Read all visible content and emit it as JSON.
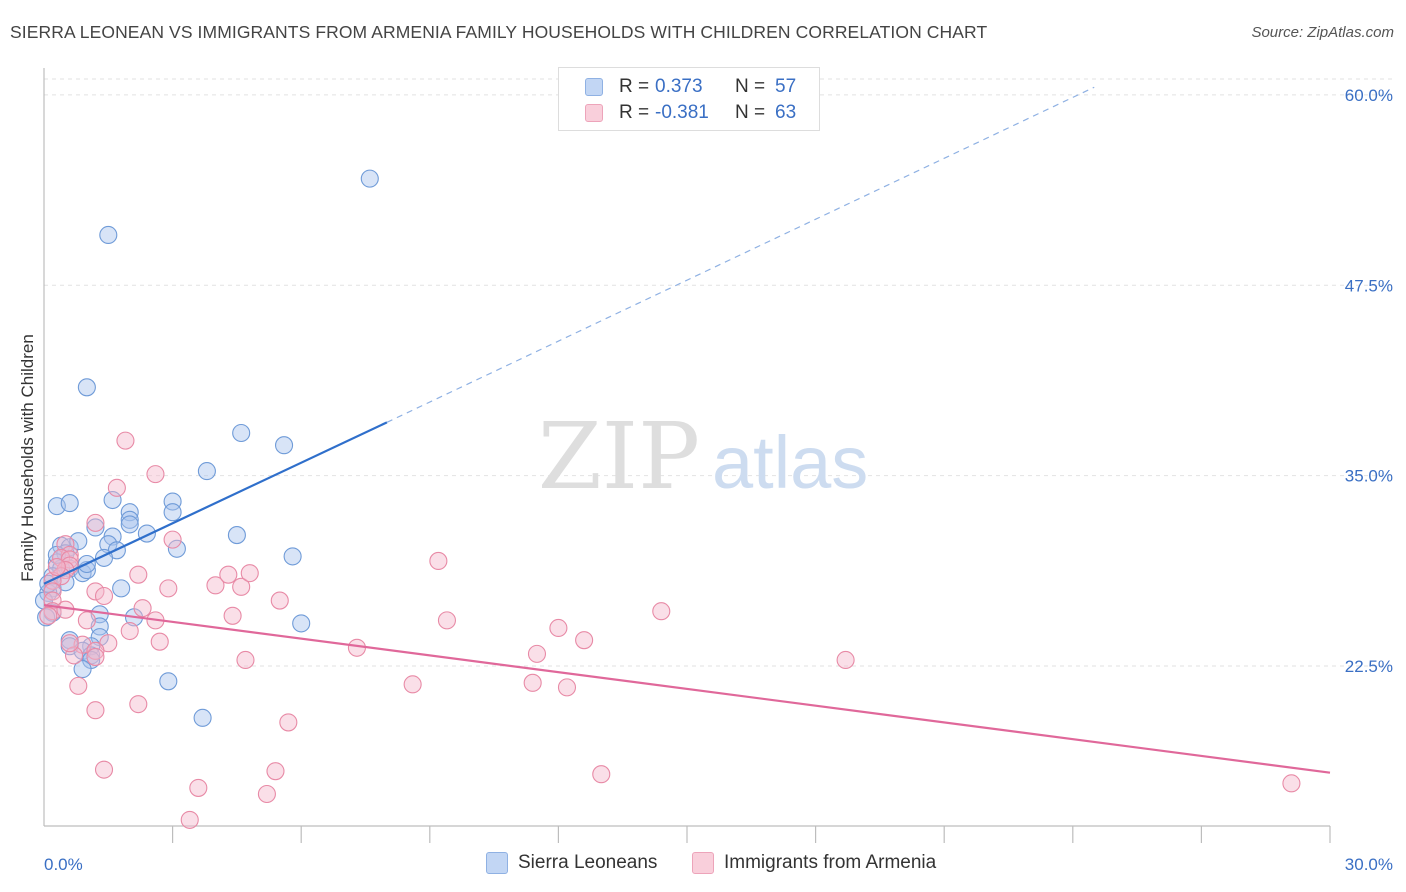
{
  "title": "SIERRA LEONEAN VS IMMIGRANTS FROM ARMENIA FAMILY HOUSEHOLDS WITH CHILDREN CORRELATION CHART",
  "source": "Source: ZipAtlas.com",
  "watermark": {
    "part1": "ZIP",
    "part2": "atlas"
  },
  "legend_top": {
    "rows": [
      {
        "r_label": "R =",
        "r_value": "0.373",
        "n_label": "N =",
        "n_value": "57",
        "color": "#a8c4ee"
      },
      {
        "r_label": "R =",
        "r_value": "-0.381",
        "n_label": "N =",
        "n_value": "63",
        "color": "#f5b8cb"
      }
    ]
  },
  "chart_data": {
    "type": "scatter",
    "ylabel": "Family Households with Children",
    "xlim": [
      0,
      30
    ],
    "ylim": [
      12.0,
      61.5
    ],
    "x_tick_labels": [
      "0.0%",
      "30.0%"
    ],
    "y_ticks": [
      22.5,
      35.0,
      47.5,
      60.0
    ],
    "y_tick_labels": [
      "22.5%",
      "35.0%",
      "47.5%",
      "60.0%"
    ],
    "grid": true,
    "legend": "bottom",
    "series": [
      {
        "name": "Sierra Leoneans",
        "color": "#a8c4ee",
        "stroke": "#6f9bd8",
        "line_color": "#2f6fcb",
        "trend": {
          "x0": 0.0,
          "y0": 27.9,
          "x1": 8.0,
          "y1": 38.5,
          "dash_to_x": 24.5,
          "dash_to_y": 60.5
        },
        "points": [
          [
            7.6,
            54.5
          ],
          [
            1.5,
            50.8
          ],
          [
            1.0,
            40.8
          ],
          [
            4.6,
            37.8
          ],
          [
            5.6,
            37.0
          ],
          [
            3.8,
            35.3
          ],
          [
            0.3,
            33.0
          ],
          [
            0.6,
            33.2
          ],
          [
            1.6,
            33.4
          ],
          [
            3.0,
            33.3
          ],
          [
            3.0,
            32.6
          ],
          [
            2.0,
            32.6
          ],
          [
            2.0,
            32.1
          ],
          [
            1.2,
            31.6
          ],
          [
            1.6,
            31.0
          ],
          [
            2.4,
            31.2
          ],
          [
            4.5,
            31.1
          ],
          [
            0.4,
            30.4
          ],
          [
            0.6,
            30.3
          ],
          [
            1.5,
            30.5
          ],
          [
            1.7,
            30.1
          ],
          [
            3.1,
            30.2
          ],
          [
            0.5,
            29.9
          ],
          [
            1.4,
            29.6
          ],
          [
            5.8,
            29.7
          ],
          [
            0.3,
            29.3
          ],
          [
            0.4,
            28.9
          ],
          [
            0.6,
            28.9
          ],
          [
            0.9,
            28.6
          ],
          [
            1.0,
            28.8
          ],
          [
            0.2,
            28.4
          ],
          [
            0.2,
            27.6
          ],
          [
            0.1,
            27.3
          ],
          [
            0.0,
            26.8
          ],
          [
            1.8,
            27.6
          ],
          [
            0.2,
            26.0
          ],
          [
            0.05,
            25.7
          ],
          [
            1.3,
            25.9
          ],
          [
            2.1,
            25.7
          ],
          [
            6.0,
            25.3
          ],
          [
            1.3,
            25.1
          ],
          [
            1.3,
            24.4
          ],
          [
            0.6,
            24.2
          ],
          [
            0.6,
            23.8
          ],
          [
            1.1,
            23.8
          ],
          [
            0.9,
            23.5
          ],
          [
            1.1,
            23.2
          ],
          [
            1.1,
            22.9
          ],
          [
            0.9,
            22.3
          ],
          [
            2.9,
            21.5
          ],
          [
            3.7,
            19.1
          ],
          [
            0.5,
            28.0
          ],
          [
            2.0,
            31.8
          ],
          [
            1.0,
            29.2
          ],
          [
            0.8,
            30.7
          ],
          [
            0.3,
            29.8
          ],
          [
            0.1,
            27.9
          ]
        ]
      },
      {
        "name": "Immigrants from Armenia",
        "color": "#f5b8cb",
        "stroke": "#e88aa6",
        "line_color": "#e0689a",
        "trend": {
          "x0": 0.0,
          "y0": 26.5,
          "x1": 30.0,
          "y1": 15.5
        },
        "points": [
          [
            1.9,
            37.3
          ],
          [
            2.6,
            35.1
          ],
          [
            1.7,
            34.2
          ],
          [
            0.5,
            30.5
          ],
          [
            0.6,
            29.8
          ],
          [
            0.4,
            29.6
          ],
          [
            0.6,
            29.5
          ],
          [
            0.6,
            29.1
          ],
          [
            0.5,
            28.8
          ],
          [
            0.4,
            28.4
          ],
          [
            0.2,
            28.1
          ],
          [
            0.2,
            27.4
          ],
          [
            0.2,
            26.8
          ],
          [
            0.2,
            26.1
          ],
          [
            0.1,
            25.8
          ],
          [
            0.5,
            26.2
          ],
          [
            1.2,
            27.4
          ],
          [
            1.4,
            27.1
          ],
          [
            2.2,
            28.5
          ],
          [
            2.9,
            27.6
          ],
          [
            4.0,
            27.8
          ],
          [
            4.3,
            28.5
          ],
          [
            4.6,
            27.7
          ],
          [
            4.8,
            28.6
          ],
          [
            5.5,
            26.8
          ],
          [
            4.4,
            25.8
          ],
          [
            2.3,
            26.3
          ],
          [
            2.6,
            25.5
          ],
          [
            1.0,
            25.5
          ],
          [
            2.0,
            24.8
          ],
          [
            1.5,
            24.0
          ],
          [
            0.9,
            23.9
          ],
          [
            1.2,
            23.5
          ],
          [
            1.2,
            23.1
          ],
          [
            0.7,
            23.2
          ],
          [
            0.6,
            24.0
          ],
          [
            2.7,
            24.1
          ],
          [
            7.3,
            23.7
          ],
          [
            4.7,
            22.9
          ],
          [
            9.2,
            29.4
          ],
          [
            9.4,
            25.5
          ],
          [
            12.0,
            25.0
          ],
          [
            12.6,
            24.2
          ],
          [
            14.4,
            26.1
          ],
          [
            11.5,
            23.3
          ],
          [
            18.7,
            22.9
          ],
          [
            8.6,
            21.3
          ],
          [
            11.4,
            21.4
          ],
          [
            12.2,
            21.1
          ],
          [
            0.8,
            21.2
          ],
          [
            1.2,
            19.6
          ],
          [
            2.2,
            20.0
          ],
          [
            5.7,
            18.8
          ],
          [
            1.4,
            15.7
          ],
          [
            5.4,
            15.6
          ],
          [
            13.0,
            15.4
          ],
          [
            3.6,
            14.5
          ],
          [
            5.2,
            14.1
          ],
          [
            3.4,
            12.4
          ],
          [
            29.1,
            14.8
          ],
          [
            1.2,
            31.9
          ],
          [
            3.0,
            30.8
          ],
          [
            0.3,
            29.0
          ]
        ]
      }
    ]
  }
}
